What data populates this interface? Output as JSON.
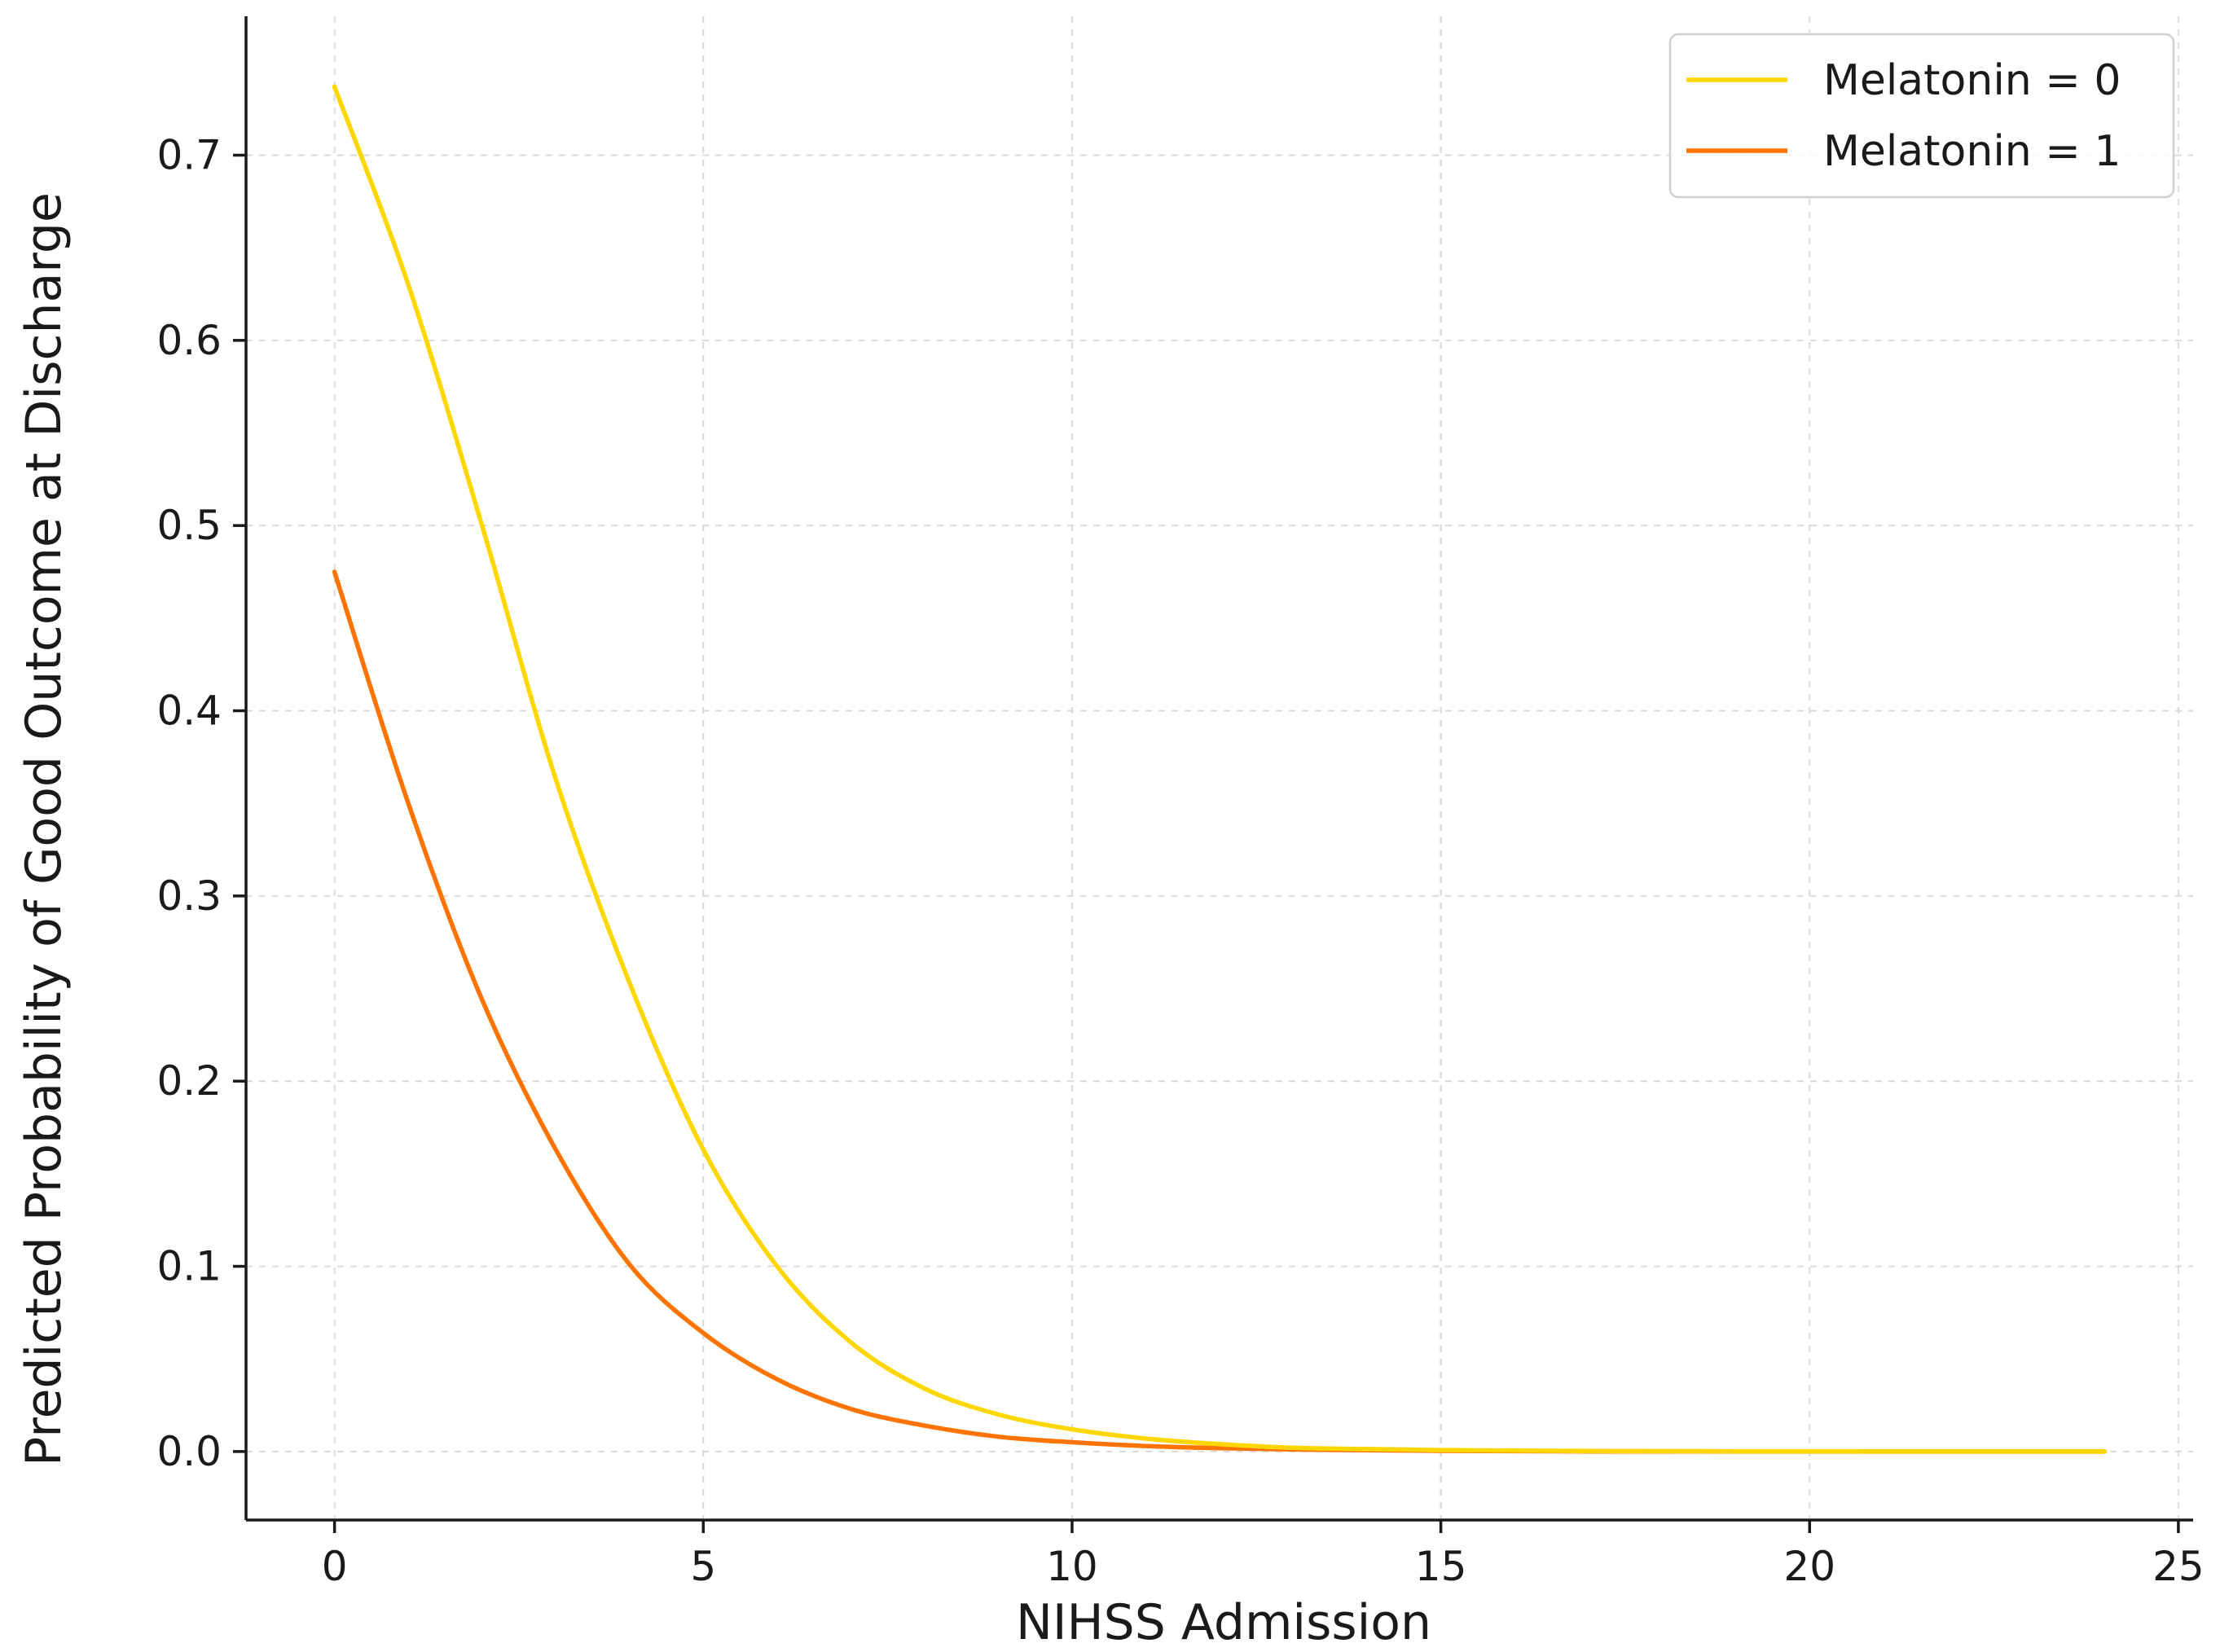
{
  "chart_data": {
    "type": "line",
    "xlabel": "NIHSS Admission",
    "ylabel": "Predicted Probability of Good Outcome at Discharge",
    "xlim": [
      -1.2,
      25.2
    ],
    "ylim": [
      -0.037,
      0.775
    ],
    "x_ticks": [
      0,
      5,
      10,
      15,
      20,
      25
    ],
    "x_tick_labels": [
      "0",
      "5",
      "10",
      "15",
      "20",
      "25"
    ],
    "y_ticks": [
      0.0,
      0.1,
      0.2,
      0.3,
      0.4,
      0.5,
      0.6,
      0.7
    ],
    "y_tick_labels": [
      "0.0",
      "0.1",
      "0.2",
      "0.3",
      "0.4",
      "0.5",
      "0.6",
      "0.7"
    ],
    "grid": true,
    "legend_position": "top-right",
    "x": [
      0,
      1,
      2,
      3,
      4,
      5,
      6,
      7,
      8,
      9,
      10,
      11,
      12,
      13,
      14,
      15,
      16,
      17,
      18,
      19,
      20,
      21,
      22,
      23,
      24
    ],
    "series": [
      {
        "name": "Melatonin = 0",
        "color": "#FFD700",
        "values": [
          0.737,
          0.63,
          0.5,
          0.363,
          0.253,
          0.163,
          0.1,
          0.059,
          0.034,
          0.02,
          0.012,
          0.007,
          0.004,
          0.002,
          0.0013,
          0.0008,
          0.0005,
          0.0003,
          0.0002,
          0.0001,
          0.0001,
          0.0,
          0.0,
          0.0,
          0.0
        ]
      },
      {
        "name": "Melatonin = 1",
        "color": "#FF7400",
        "values": [
          0.475,
          0.35,
          0.244,
          0.163,
          0.101,
          0.064,
          0.039,
          0.023,
          0.014,
          0.008,
          0.005,
          0.003,
          0.0018,
          0.0011,
          0.0007,
          0.0004,
          0.0002,
          0.0001,
          0.0001,
          0.0,
          0.0,
          0.0,
          0.0,
          0.0,
          0.0
        ]
      }
    ]
  }
}
